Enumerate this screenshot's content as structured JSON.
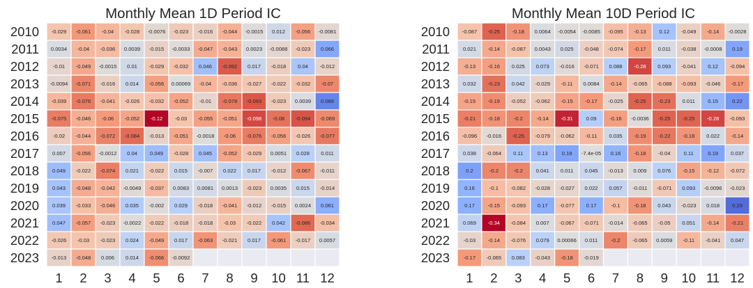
{
  "chart_data": [
    {
      "type": "heatmap",
      "title": "Monthly Mean 1D Period IC",
      "x": [
        "1",
        "2",
        "3",
        "4",
        "5",
        "6",
        "7",
        "8",
        "9",
        "10",
        "11",
        "12"
      ],
      "y": [
        "2010",
        "2011",
        "2012",
        "2013",
        "2014",
        "2015",
        "2016",
        "2017",
        "2018",
        "2019",
        "2020",
        "2021",
        "2022",
        "2023"
      ],
      "vmin": -0.12,
      "vmax": 0.12,
      "colormap": "coolwarm (negative = red, positive = blue)",
      "grid": false,
      "values": [
        [
          -0.029,
          -0.061,
          -0.04,
          -0.028,
          -0.0076,
          -0.023,
          -0.016,
          -0.044,
          -0.0015,
          0.012,
          -0.056,
          -0.0081
        ],
        [
          0.0034,
          -0.04,
          -0.036,
          0.0039,
          -0.015,
          -0.0033,
          -0.047,
          -0.043,
          0.0023,
          -0.0088,
          -0.023,
          0.066
        ],
        [
          -0.01,
          -0.049,
          -0.0015,
          0.01,
          -0.029,
          -0.032,
          0.046,
          -0.092,
          0.017,
          -0.018,
          0.04,
          -0.012
        ],
        [
          -0.0094,
          -0.071,
          -0.016,
          0.014,
          -0.056,
          0.00069,
          -0.04,
          -0.036,
          -0.027,
          -0.022,
          -0.032,
          -0.07
        ],
        [
          -0.039,
          -0.076,
          -0.041,
          -0.026,
          -0.032,
          -0.052,
          -0.01,
          -0.078,
          -0.093,
          -0.023,
          0.0039,
          0.088
        ],
        [
          -0.075,
          -0.046,
          -0.06,
          -0.052,
          -0.12,
          -0.03,
          -0.055,
          -0.051,
          -0.098,
          -0.08,
          -0.094,
          -0.069
        ],
        [
          -0.02,
          -0.044,
          -0.072,
          -0.084,
          -0.013,
          -0.051,
          -0.0018,
          -0.06,
          -0.076,
          -0.056,
          -0.026,
          -0.077
        ],
        [
          0.007,
          -0.056,
          -0.0012,
          0.04,
          0.049,
          -0.028,
          0.045,
          -0.052,
          -0.029,
          0.0051,
          0.028,
          0.011
        ],
        [
          0.049,
          -0.022,
          -0.074,
          0.021,
          -0.022,
          0.015,
          -0.007,
          0.022,
          0.017,
          -0.012,
          -0.067,
          -0.011
        ],
        [
          0.043,
          -0.048,
          -0.042,
          -0.0049,
          -0.037,
          0.0083,
          0.0081,
          0.0013,
          -0.023,
          0.0035,
          0.015,
          -0.014
        ],
        [
          0.039,
          -0.033,
          -0.046,
          0.035,
          -0.002,
          0.029,
          -0.018,
          -0.041,
          -0.012,
          -0.015,
          0.0024,
          0.061
        ],
        [
          0.047,
          -0.057,
          -0.023,
          -0.0022,
          -0.022,
          -0.018,
          -0.018,
          -0.03,
          -0.022,
          0.042,
          -0.086,
          -0.034
        ],
        [
          -0.026,
          -0.03,
          -0.023,
          0.024,
          -0.049,
          0.017,
          -0.063,
          -0.021,
          0.017,
          -0.061,
          -0.017,
          0.0057
        ],
        [
          -0.013,
          -0.048,
          0.006,
          0.014,
          -0.066,
          -0.0092,
          null,
          null,
          null,
          null,
          null,
          null
        ]
      ],
      "labels": [
        [
          "-0.029",
          "-0.061",
          "-0.04",
          "-0.028",
          "-0.0076",
          "-0.023",
          "-0.016",
          "-0.044",
          "-0.0015",
          "0.012",
          "-0.056",
          "-0.0081"
        ],
        [
          "0.0034",
          "-0.04",
          "-0.036",
          "0.0039",
          "-0.015",
          "-0.0033",
          "-0.047",
          "-0.043",
          "0.0023",
          "-0.0088",
          "-0.023",
          "0.066"
        ],
        [
          "-0.01",
          "-0.049",
          "-0.0015",
          "0.01",
          "-0.029",
          "-0.032",
          "0.046",
          "-0.092",
          "0.017",
          "-0.018",
          "0.04",
          "-0.012"
        ],
        [
          "-0.0094",
          "-0.071",
          "-0.016",
          "0.014",
          "-0.056",
          "0.00069",
          "-0.04",
          "-0.036",
          "-0.027",
          "-0.022",
          "-0.032",
          "-0.07"
        ],
        [
          "-0.039",
          "-0.076",
          "-0.041",
          "-0.026",
          "-0.032",
          "-0.052",
          "-0.01",
          "-0.078",
          "-0.093",
          "-0.023",
          "0.0039",
          "0.088"
        ],
        [
          "-0.075",
          "-0.046",
          "-0.06",
          "-0.052",
          "-0.12",
          "-0.03",
          "-0.055",
          "-0.051",
          "-0.098",
          "-0.08",
          "-0.094",
          "-0.069"
        ],
        [
          "-0.02",
          "-0.044",
          "-0.072",
          "-0.084",
          "-0.013",
          "-0.051",
          "-0.0018",
          "-0.06",
          "-0.076",
          "-0.056",
          "-0.026",
          "-0.077"
        ],
        [
          "0.007",
          "-0.056",
          "-0.0012",
          "0.04",
          "0.049",
          "-0.028",
          "0.045",
          "-0.052",
          "-0.029",
          "0.0051",
          "0.028",
          "0.011"
        ],
        [
          "0.049",
          "-0.022",
          "-0.074",
          "0.021",
          "-0.022",
          "0.015",
          "-0.007",
          "0.022",
          "0.017",
          "-0.012",
          "-0.067",
          "-0.011"
        ],
        [
          "0.043",
          "-0.048",
          "-0.042",
          "-0.0049",
          "-0.037",
          "0.0083",
          "0.0081",
          "0.0013",
          "-0.023",
          "0.0035",
          "0.015",
          "-0.014"
        ],
        [
          "0.039",
          "-0.033",
          "-0.046",
          "0.035",
          "-0.002",
          "0.029",
          "-0.018",
          "-0.041",
          "-0.012",
          "-0.015",
          "0.0024",
          "0.061"
        ],
        [
          "0.047",
          "-0.057",
          "-0.023",
          "-0.0022",
          "-0.022",
          "-0.018",
          "-0.018",
          "-0.03",
          "-0.022",
          "0.042",
          "-0.086",
          "-0.034"
        ],
        [
          "-0.026",
          "-0.03",
          "-0.023",
          "0.024",
          "-0.049",
          "0.017",
          "-0.063",
          "-0.021",
          "0.017",
          "-0.061",
          "-0.017",
          "0.0057"
        ],
        [
          "-0.013",
          "-0.048",
          "0.006",
          "0.014",
          "-0.066",
          "-0.0092",
          null,
          null,
          null,
          null,
          null,
          null
        ]
      ]
    },
    {
      "type": "heatmap",
      "title": "Monthly Mean 10D Period IC",
      "x": [
        "1",
        "2",
        "3",
        "4",
        "5",
        "6",
        "7",
        "8",
        "9",
        "10",
        "11",
        "12"
      ],
      "y": [
        "2010",
        "2011",
        "2012",
        "2013",
        "2014",
        "2015",
        "2016",
        "2017",
        "2018",
        "2019",
        "2020",
        "2021",
        "2022",
        "2023"
      ],
      "vmin": -0.34,
      "vmax": 0.34,
      "colormap": "coolwarm (negative = red, positive = blue)",
      "grid": false,
      "values": [
        [
          -0.087,
          -0.25,
          -0.18,
          0.0064,
          -0.0054,
          -0.0085,
          -0.095,
          -0.13,
          0.12,
          -0.049,
          -0.14,
          -0.0028
        ],
        [
          0.021,
          -0.14,
          -0.087,
          0.0043,
          0.025,
          -0.048,
          -0.074,
          -0.17,
          0.011,
          -0.038,
          -0.0008,
          0.19
        ],
        [
          -0.13,
          -0.16,
          0.025,
          0.073,
          -0.016,
          -0.071,
          0.088,
          -0.28,
          0.093,
          -0.041,
          0.12,
          -0.094
        ],
        [
          0.032,
          -0.23,
          0.042,
          -0.029,
          -0.11,
          0.0084,
          -0.14,
          -0.065,
          -0.088,
          -0.093,
          -0.046,
          -0.17
        ],
        [
          -0.15,
          -0.19,
          -0.052,
          -0.062,
          -0.15,
          -0.17,
          -0.025,
          -0.25,
          -0.23,
          0.011,
          0.15,
          0.22
        ],
        [
          -0.21,
          -0.18,
          -0.2,
          -0.14,
          -0.31,
          0.09,
          -0.16,
          -0.0036,
          -0.25,
          -0.25,
          -0.28,
          -0.093
        ],
        [
          -0.096,
          -0.016,
          -0.25,
          -0.079,
          -0.062,
          -0.11,
          0.035,
          -0.19,
          -0.22,
          -0.18,
          0.022,
          -0.14
        ],
        [
          0.038,
          -0.064,
          0.11,
          0.13,
          0.19,
          -7.4e-05,
          0.16,
          -0.18,
          -0.04,
          0.11,
          0.19,
          0.037
        ],
        [
          0.2,
          -0.2,
          -0.2,
          0.041,
          0.011,
          0.045,
          -0.013,
          0.009,
          0.076,
          -0.15,
          -0.12,
          -0.072
        ],
        [
          0.16,
          -0.1,
          -0.082,
          -0.028,
          -0.027,
          0.022,
          0.057,
          -0.011,
          -0.071,
          0.093,
          -0.0096,
          -0.023
        ],
        [
          0.17,
          -0.15,
          -0.093,
          0.17,
          -0.077,
          0.17,
          -0.1,
          -0.18,
          0.043,
          -0.023,
          0.018,
          0.29
        ],
        [
          0.069,
          -0.34,
          -0.084,
          0.007,
          -0.067,
          -0.071,
          -0.014,
          -0.065,
          -0.05,
          0.051,
          -0.14,
          -0.21
        ],
        [
          -0.03,
          -0.14,
          -0.076,
          0.079,
          0.00066,
          0.011,
          -0.2,
          -0.065,
          0.0059,
          -0.11,
          -0.041,
          0.047
        ],
        [
          -0.17,
          -0.065,
          0.083,
          -0.043,
          -0.18,
          -0.019,
          null,
          null,
          null,
          null,
          null,
          null
        ]
      ],
      "labels": [
        [
          "-0.087",
          "-0.25",
          "-0.18",
          "0.0064",
          "-0.0054",
          "-0.0085",
          "-0.095",
          "-0.13",
          "0.12",
          "-0.049",
          "-0.14",
          "-0.0028"
        ],
        [
          "0.021",
          "-0.14",
          "-0.087",
          "0.0043",
          "0.025",
          "-0.048",
          "-0.074",
          "-0.17",
          "0.011",
          "-0.038",
          "-0.0008",
          "0.19"
        ],
        [
          "-0.13",
          "-0.16",
          "0.025",
          "0.073",
          "-0.016",
          "-0.071",
          "0.088",
          "-0.28",
          "0.093",
          "-0.041",
          "0.12",
          "-0.094"
        ],
        [
          "0.032",
          "-0.23",
          "0.042",
          "-0.029",
          "-0.11",
          "0.0084",
          "-0.14",
          "-0.065",
          "-0.088",
          "-0.093",
          "-0.046",
          "-0.17"
        ],
        [
          "-0.15",
          "-0.19",
          "-0.052",
          "-0.062",
          "-0.15",
          "-0.17",
          "-0.025",
          "-0.25",
          "-0.23",
          "0.011",
          "0.15",
          "0.22"
        ],
        [
          "-0.21",
          "-0.18",
          "-0.2",
          "-0.14",
          "-0.31",
          "0.09",
          "-0.16",
          "-0.0036",
          "-0.25",
          "-0.25",
          "-0.28",
          "-0.093"
        ],
        [
          "-0.096",
          "-0.016",
          "-0.25",
          "-0.079",
          "-0.062",
          "-0.11",
          "0.035",
          "-0.19",
          "-0.22",
          "-0.18",
          "0.022",
          "-0.14"
        ],
        [
          "0.038",
          "-0.064",
          "0.11",
          "0.13",
          "0.19",
          "-7.4e-05",
          "0.16",
          "-0.18",
          "-0.04",
          "0.11",
          "0.19",
          "0.037"
        ],
        [
          "0.2",
          "-0.2",
          "-0.2",
          "0.041",
          "0.011",
          "0.045",
          "-0.013",
          "0.009",
          "0.076",
          "-0.15",
          "-0.12",
          "-0.072"
        ],
        [
          "0.16",
          "-0.1",
          "-0.082",
          "-0.028",
          "-0.027",
          "0.022",
          "0.057",
          "-0.011",
          "-0.071",
          "0.093",
          "-0.0096",
          "-0.023"
        ],
        [
          "0.17",
          "-0.15",
          "-0.093",
          "0.17",
          "-0.077",
          "0.17",
          "-0.1",
          "-0.18",
          "0.043",
          "-0.023",
          "0.018",
          "0.29"
        ],
        [
          "0.069",
          "-0.34",
          "-0.084",
          "0.007",
          "-0.067",
          "-0.071",
          "-0.014",
          "-0.065",
          "-0.05",
          "0.051",
          "-0.14",
          "-0.21"
        ],
        [
          "-0.03",
          "-0.14",
          "-0.076",
          "0.079",
          "0.00066",
          "0.011",
          "-0.2",
          "-0.065",
          "0.0059",
          "-0.11",
          "-0.041",
          "0.047"
        ],
        [
          "-0.17",
          "-0.065",
          "0.083",
          "-0.043",
          "-0.18",
          "-0.019",
          null,
          null,
          null,
          null,
          null,
          null
        ]
      ]
    }
  ]
}
